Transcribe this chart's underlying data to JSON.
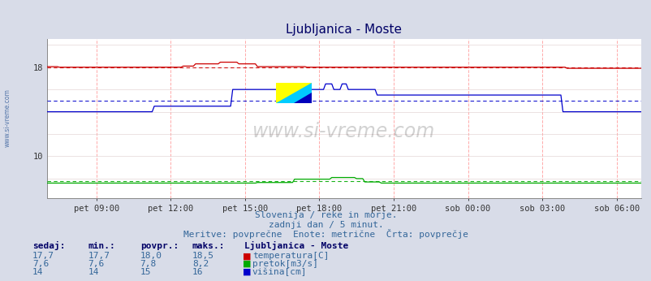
{
  "title": "Ljubljanica - Moste",
  "subtitle1": "Slovenija / reke in morje.",
  "subtitle2": "zadnji dan / 5 minut.",
  "subtitle3": "Meritve: povprečne  Enote: metrične  Črta: povprečje",
  "bg_color": "#d8dce8",
  "plot_bg_color": "#ffffff",
  "x_tick_labels": [
    "pet 09:00",
    "pet 12:00",
    "pet 15:00",
    "pet 18:00",
    "pet 21:00",
    "sob 00:00",
    "sob 03:00",
    "sob 06:00"
  ],
  "x_tick_positions": [
    9,
    12,
    15,
    18,
    21,
    24,
    27,
    30
  ],
  "xlim_min": 7.0,
  "xlim_max": 31.0,
  "ylim_min": 6.25,
  "ylim_max": 20.5,
  "yticks": [
    10,
    18
  ],
  "temp_color": "#cc0000",
  "flow_color": "#00aa00",
  "height_color": "#0000cc",
  "temp_avg": 18.0,
  "flow_avg": 7.8,
  "height_avg": 15.0,
  "grid_v_color": "#ffaaaa",
  "grid_h_color": "#ddcccc",
  "watermark": "www.si-vreme.com",
  "side_label": "www.si-vreme.com",
  "table_headers": [
    "sedaj:",
    "min.:",
    "povpr.:",
    "maks.:"
  ],
  "table_station": "Ljubljanica - Moste",
  "row1_label": "temperatura[C]",
  "row2_label": "pretok[m3/s]",
  "row3_label": "višina[cm]",
  "row1_values": [
    "17,7",
    "17,7",
    "18,0",
    "18,5"
  ],
  "row2_values": [
    "7,6",
    "7,6",
    "7,8",
    "8,2"
  ],
  "row3_values": [
    "14",
    "14",
    "15",
    "16"
  ],
  "row1_color": "#cc0000",
  "row2_color": "#00aa00",
  "row3_color": "#0000cc",
  "text_color": "#336699",
  "header_color": "#000066"
}
